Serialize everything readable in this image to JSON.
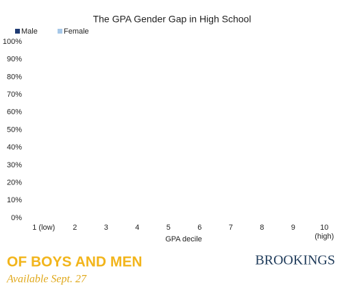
{
  "chart_data": {
    "type": "bar",
    "stacked": false,
    "title": "The GPA Gender Gap in High School",
    "x_label": "GPA decile",
    "categories": [
      "1 (low)",
      "2",
      "3",
      "4",
      "5",
      "6",
      "7",
      "8",
      "9",
      "10 (high)"
    ],
    "series": [
      {
        "name": "Male",
        "color": "#1f3b73"
      },
      {
        "name": "Female",
        "color": "#a6c8e8"
      }
    ],
    "ylim": [
      0,
      100
    ],
    "yticks": [
      {
        "value": 0,
        "label": "0%"
      },
      {
        "value": 10,
        "label": "10%"
      },
      {
        "value": 20,
        "label": "20%"
      },
      {
        "value": 30,
        "label": "30%"
      },
      {
        "value": 40,
        "label": "40%"
      },
      {
        "value": 50,
        "label": "50%"
      },
      {
        "value": 60,
        "label": "60%"
      },
      {
        "value": 70,
        "label": "70%"
      },
      {
        "value": 80,
        "label": "80%"
      },
      {
        "value": 90,
        "label": "90%"
      },
      {
        "value": 100,
        "label": "100%"
      }
    ],
    "grid": false,
    "legend": "top-left"
  },
  "footer": {
    "book_title": "OF BOYS AND MEN",
    "release": "Available Sept. 27",
    "publisher": "BROOKINGS"
  }
}
